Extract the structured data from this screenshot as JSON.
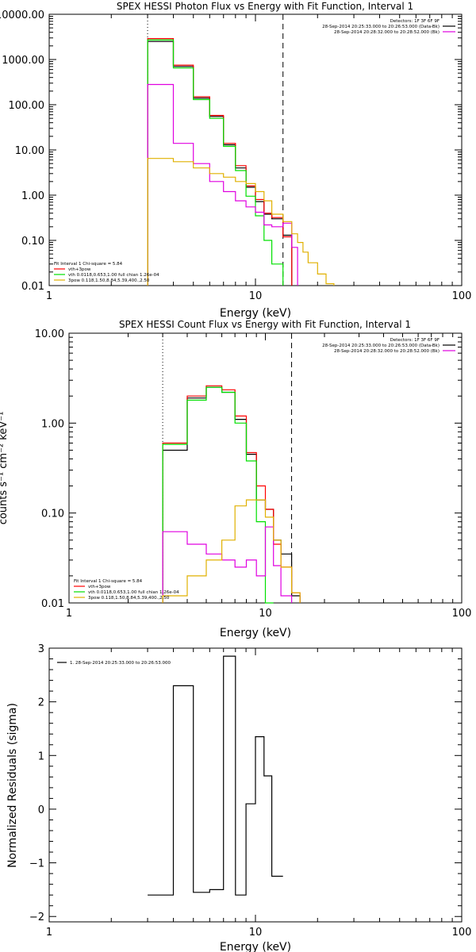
{
  "chart_data": [
    {
      "type": "line",
      "title": "SPEX HESSI Photon Flux vs Energy with Fit Function, Interval 1",
      "xlabel": "Energy (keV)",
      "ylabel": "",
      "xscale": "log",
      "yscale": "log",
      "xlim": [
        1,
        100
      ],
      "ylim": [
        0.01,
        10000
      ],
      "xticks": [
        {
          "v": 1,
          "label": "1"
        },
        {
          "v": 10,
          "label": "10"
        },
        {
          "v": 100,
          "label": "100"
        }
      ],
      "yticks": [
        {
          "v": 10000,
          "label": "10000.00"
        },
        {
          "v": 1000,
          "label": "1000.00"
        },
        {
          "v": 100,
          "label": "100.00"
        },
        {
          "v": 10,
          "label": "10.00"
        },
        {
          "v": 1,
          "label": "1.00"
        },
        {
          "v": 0.1,
          "label": "0.10"
        },
        {
          "v": 0.01,
          "label": "0.01"
        }
      ],
      "vlines": [
        {
          "x": 3.0,
          "style": "dotted"
        },
        {
          "x": 13.6,
          "style": "dashed"
        }
      ],
      "edges": [
        3.0,
        4.0,
        5.0,
        6.0,
        7.0,
        8.0,
        9.0,
        10.0,
        11.0,
        12.0,
        13.6,
        15.0,
        16.0,
        17.0,
        18.0,
        20.0,
        22.0,
        24.0
      ],
      "series": [
        {
          "name": "",
          "color": "#000000",
          "values": [
            2500,
            700,
            140,
            55,
            13,
            4.0,
            1.5,
            0.72,
            0.38,
            0.3,
            0.13,
            null,
            null,
            null,
            null,
            null,
            null
          ]
        },
        {
          "name": "",
          "color": "#ff0000",
          "values": [
            2900,
            750,
            150,
            58,
            14,
            4.5,
            1.6,
            0.8,
            0.4,
            0.32,
            0.12,
            null,
            null,
            null,
            null,
            null,
            null
          ]
        },
        {
          "name": "",
          "color": "#00e000",
          "values": [
            2700,
            650,
            130,
            50,
            12,
            3.5,
            0.95,
            0.35,
            0.1,
            0.03,
            null,
            null,
            null,
            null,
            null,
            null,
            null
          ]
        },
        {
          "name": "",
          "color": "#e000e0",
          "values": [
            280,
            14,
            5,
            2.0,
            1.2,
            0.75,
            0.55,
            0.42,
            0.22,
            0.2,
            0.24,
            0.07,
            null,
            null,
            null,
            null,
            null
          ]
        },
        {
          "name": "",
          "color": "#e0b000",
          "values": [
            6.5,
            5.5,
            4.0,
            3.0,
            2.5,
            2.0,
            1.8,
            1.2,
            0.75,
            0.38,
            0.26,
            0.14,
            0.09,
            0.055,
            0.032,
            0.018,
            0.011
          ]
        }
      ],
      "legend_top": [
        "Detectors: 1F 3F 6F 9F",
        "28-Sep-2014 20:25:33.000 to 20:26:53.000 (Data-Bk)",
        "28-Sep-2014 20:28:32.000 to 20:28:52.000 (Bk)"
      ],
      "legend_top_colors": [
        "none",
        "#000000",
        "#e000e0"
      ],
      "legend_fit_header": "Fit Interval  1   Chi-square = 5.84",
      "legend_fit": [
        "vth+3pow",
        "vth 0.0118,0.653,1.00  full chian 1.26e-04",
        "3pow 0.118,1.50,8.84,5.39,400.,2.50"
      ],
      "legend_fit_colors": [
        "#ff0000",
        "#00e000",
        "#e0b000"
      ]
    },
    {
      "type": "line",
      "title": "SPEX HESSI Count Flux vs Energy with Fit Function, Interval 1",
      "xlabel": "Energy (keV)",
      "ylabel": "counts s⁻¹ cm⁻² keV⁻¹",
      "xscale": "log",
      "yscale": "log",
      "xlim": [
        1,
        100
      ],
      "ylim": [
        0.01,
        10
      ],
      "xticks": [
        {
          "v": 1,
          "label": "1"
        },
        {
          "v": 10,
          "label": "10"
        },
        {
          "v": 100,
          "label": "100"
        }
      ],
      "yticks": [
        {
          "v": 10,
          "label": "10.00"
        },
        {
          "v": 1,
          "label": "1.00"
        },
        {
          "v": 0.1,
          "label": "0.10"
        },
        {
          "v": 0.01,
          "label": "0.01"
        }
      ],
      "vlines": [
        {
          "x": 3.0,
          "style": "dotted"
        },
        {
          "x": 13.6,
          "style": "dashed"
        }
      ],
      "edges": [
        3.0,
        4.0,
        5.0,
        6.0,
        7.0,
        8.0,
        9.0,
        10.0,
        11.0,
        12.0,
        13.6,
        15.0
      ],
      "series": [
        {
          "name": "",
          "color": "#000000",
          "values": [
            0.5,
            1.9,
            2.5,
            2.2,
            1.1,
            0.45,
            0.14,
            0.11,
            0.05,
            0.035,
            0.012
          ]
        },
        {
          "name": "",
          "color": "#ff0000",
          "values": [
            0.6,
            2.0,
            2.6,
            2.35,
            1.2,
            0.47,
            0.2,
            0.11,
            0.045,
            0.025,
            0.013
          ]
        },
        {
          "name": "",
          "color": "#00e000",
          "values": [
            0.58,
            1.8,
            2.5,
            2.2,
            1.0,
            0.38,
            0.08,
            0.01,
            null,
            null,
            null
          ]
        },
        {
          "name": "",
          "color": "#e000e0",
          "values": [
            0.062,
            0.045,
            0.035,
            0.03,
            0.025,
            0.03,
            0.02,
            0.07,
            0.026,
            0.012,
            null
          ]
        },
        {
          "name": "",
          "color": "#e0b000",
          "values": [
            0.012,
            0.02,
            0.03,
            0.05,
            0.12,
            0.14,
            0.14,
            0.09,
            0.05,
            0.025,
            0.013
          ]
        }
      ],
      "legend_top": [
        "Detectors: 1F 3F 6F 9F",
        "28-Sep-2014 20:25:33.000 to 20:26:53.000 (Data-Bk)",
        "28-Sep-2014 20:28:32.000 to 20:28:52.000 (Bk)"
      ],
      "legend_top_colors": [
        "none",
        "#000000",
        "#e000e0"
      ],
      "legend_fit_header": "Fit Interval  1   Chi-square = 5.84",
      "legend_fit": [
        "vth+3pow",
        "vth 0.0118,0.653,1.00  full chian 1.26e-04",
        "3pow 0.118,1.50,8.84,5.39,400.,2.50"
      ],
      "legend_fit_colors": [
        "#ff0000",
        "#00e000",
        "#e0b000"
      ]
    },
    {
      "type": "line",
      "title": "",
      "xlabel": "Energy (keV)",
      "ylabel": "Normalized Residuals (sigma)",
      "xscale": "log",
      "yscale": "linear",
      "xlim": [
        1,
        100
      ],
      "ylim": [
        -2.1,
        3
      ],
      "xticks": [
        {
          "v": 1,
          "label": "1"
        },
        {
          "v": 10,
          "label": "10"
        },
        {
          "v": 100,
          "label": "100"
        }
      ],
      "yticks": [
        {
          "v": 3,
          "label": "3"
        },
        {
          "v": 2,
          "label": "2"
        },
        {
          "v": 1,
          "label": "1"
        },
        {
          "v": 0,
          "label": "0"
        },
        {
          "v": -1,
          "label": "−1"
        },
        {
          "v": -2,
          "label": "−2"
        }
      ],
      "edges": [
        3.0,
        4.0,
        5.0,
        6.0,
        7.0,
        8.0,
        9.0,
        10.0,
        11.0,
        12.0,
        13.6
      ],
      "series": [
        {
          "name": "1. 28-Sep-2014 20:25:33.000 to 20:26:53.000",
          "color": "#000000",
          "values": [
            -1.6,
            2.3,
            -1.55,
            -1.5,
            2.85,
            -1.6,
            0.1,
            1.35,
            0.62,
            -1.25
          ]
        }
      ],
      "legend": [
        "1. 28-Sep-2014 20:25:33.000 to 20:26:53.000"
      ]
    }
  ]
}
